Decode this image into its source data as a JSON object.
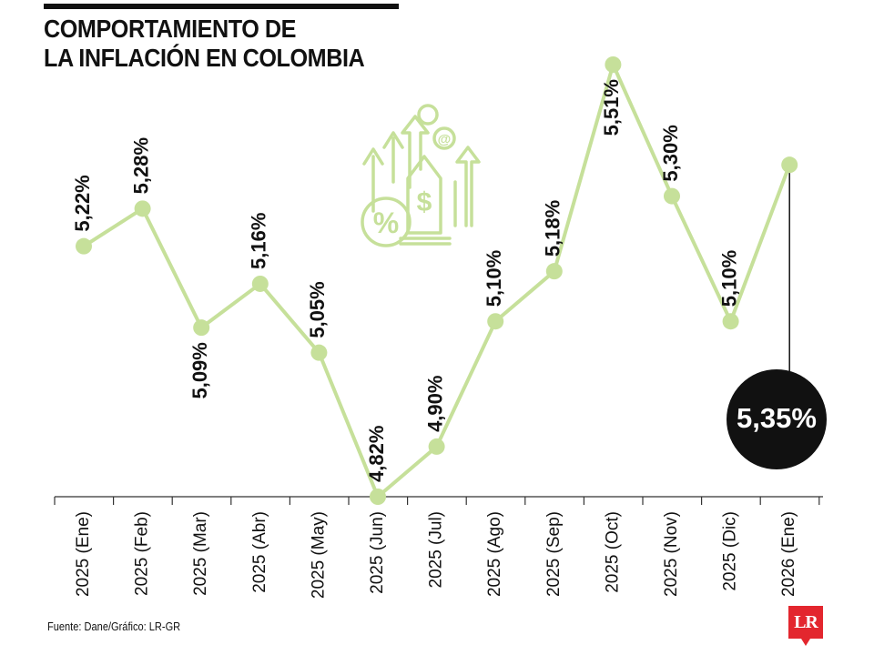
{
  "header": {
    "title_line1": "COMPORTAMIENTO DE",
    "title_line2": "LA INFLACIÓN EN COLOMBIA"
  },
  "footer": {
    "source": "Fuente: Dane/Gráfico: LR-GR",
    "logo_text": "LR"
  },
  "icons": {
    "illustration": "finance-growth-icon"
  },
  "colors": {
    "line": "#c6e09a",
    "marker": "#c6e09a",
    "axis": "#333333",
    "highlight_bg": "#111111",
    "highlight_text": "#ffffff",
    "logo_bg": "#e3262e",
    "icon": "#c6e09a"
  },
  "chart_data": {
    "type": "line",
    "title": "COMPORTAMIENTO DE LA INFLACIÓN EN COLOMBIA",
    "categories": [
      "2025 (Ene)",
      "2025 (Feb)",
      "2025 (Mar)",
      "2025 (Abr)",
      "2025 (May)",
      "2025 (Jun)",
      "2025 (Jul)",
      "2025 (Ago)",
      "2025 (Sep)",
      "2025 (Oct)",
      "2025 (Nov)",
      "2025 (Dic)",
      "2026 (Ene)"
    ],
    "values": [
      5.22,
      5.28,
      5.09,
      5.16,
      5.05,
      4.82,
      4.9,
      5.1,
      5.18,
      5.51,
      5.3,
      5.1,
      5.35
    ],
    "labels": [
      "5,22%",
      "5,28%",
      "5,09%",
      "5,16%",
      "5,05%",
      "4,82%",
      "4,90%",
      "5,10%",
      "5,18%",
      "5,51%",
      "5,30%",
      "5,10%",
      "5,35%"
    ],
    "label_side": [
      "above",
      "above",
      "below",
      "above",
      "above",
      "above",
      "above",
      "above",
      "above",
      "below",
      "above",
      "above",
      "callout"
    ],
    "highlight_index": 12,
    "ylim": [
      4.82,
      5.51
    ],
    "grid": false,
    "legend": "none"
  }
}
